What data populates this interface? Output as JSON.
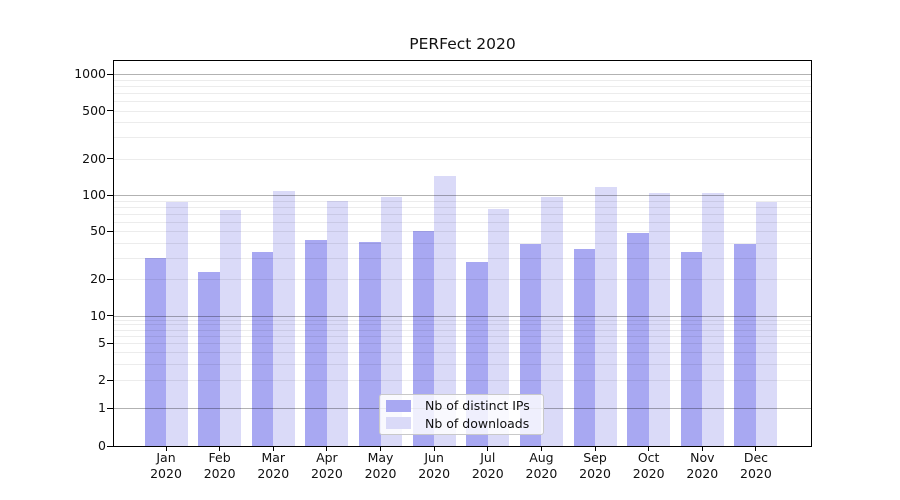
{
  "title": "PERFect 2020",
  "chart_data": {
    "type": "bar",
    "title": "PERFect 2020",
    "categories": [
      "Jan 2020",
      "Feb 2020",
      "Mar 2020",
      "Apr 2020",
      "May 2020",
      "Jun 2020",
      "Jul 2020",
      "Aug 2020",
      "Sep 2020",
      "Oct 2020",
      "Nov 2020",
      "Dec 2020"
    ],
    "series": [
      {
        "name": "Nb of distinct IPs",
        "color": "#a8a8f2",
        "values": [
          30,
          23,
          34,
          42,
          41,
          50,
          28,
          39,
          36,
          48,
          34,
          39
        ]
      },
      {
        "name": "Nb of downloads",
        "color": "#dadaf8",
        "values": [
          88,
          75,
          108,
          89,
          96,
          145,
          77,
          97,
          116,
          104,
          104,
          88
        ]
      }
    ],
    "xlabel": "",
    "ylabel": "",
    "yscale": "symlog",
    "yticks": [
      1000,
      500,
      200,
      100,
      50,
      20,
      10,
      5,
      2,
      1,
      0
    ],
    "ylim": [
      0,
      1290
    ],
    "grid": "horizontal major and minor gridlines",
    "legend_position": "lower center",
    "colors": {
      "distinct_ips_bar": "#a8a8f2",
      "downloads_bar": "#dadaf8",
      "spine": "#000000",
      "major_grid": "#b3b3b3",
      "minor_grid": "#ebebeb"
    }
  }
}
